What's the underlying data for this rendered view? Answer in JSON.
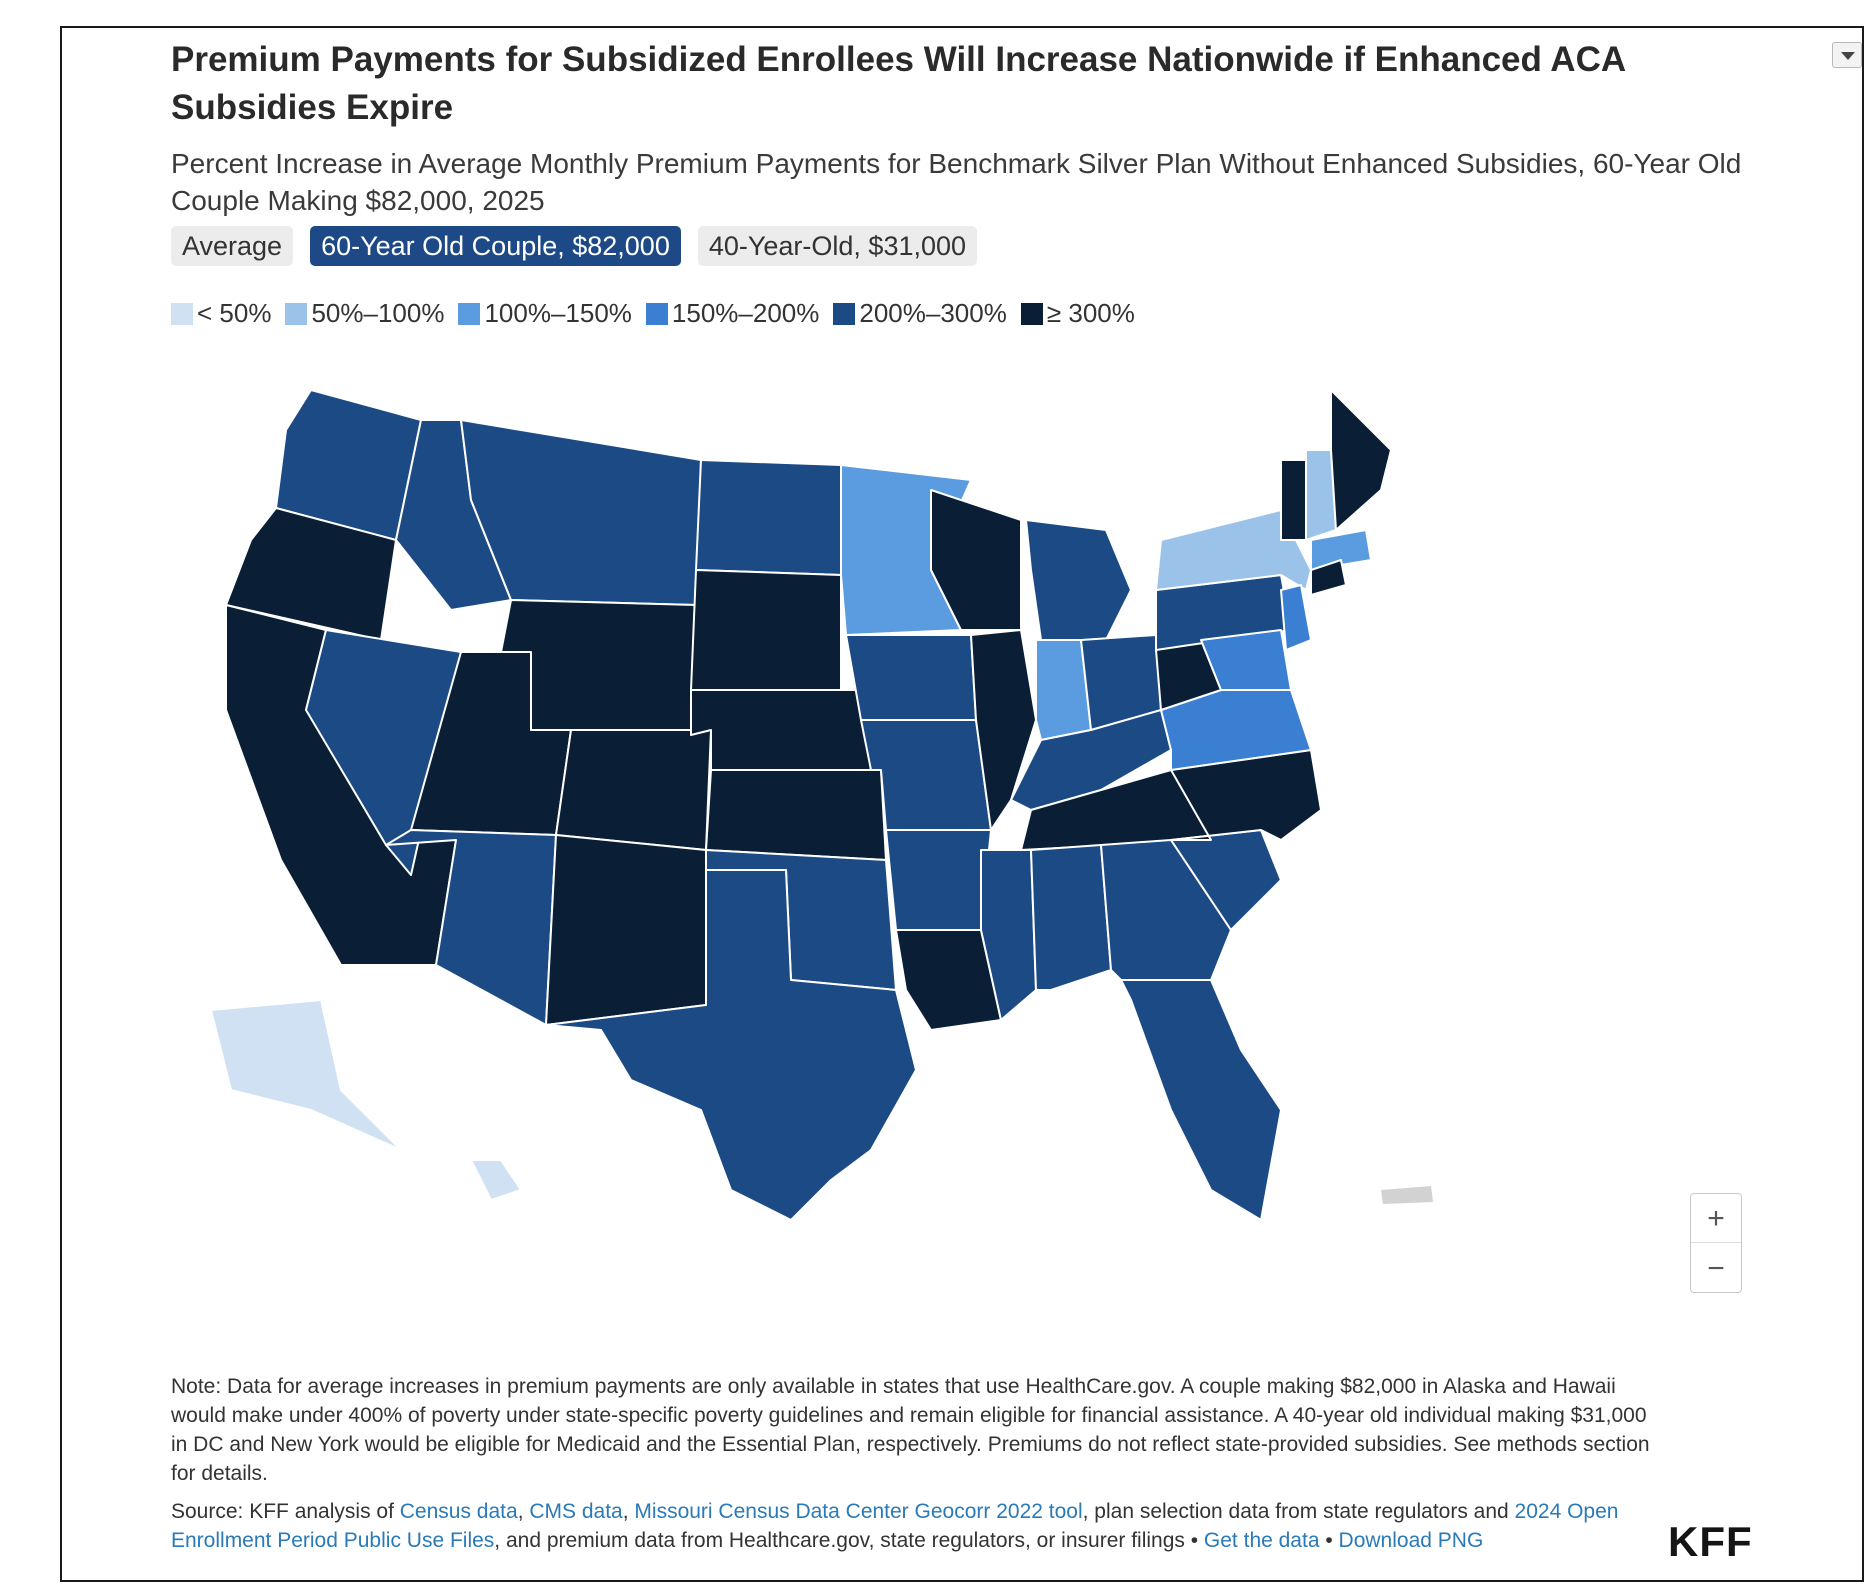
{
  "header": {
    "title": "Premium Payments for Subsidized Enrollees Will Increase Nationwide if Enhanced ACA Subsidies Expire",
    "subtitle": "Percent Increase in Average Monthly Premium Payments for Benchmark Silver Plan Without Enhanced Subsidies, 60-Year Old Couple Making $82,000, 2025",
    "menu_icon": "chevron-down-icon"
  },
  "tabs": [
    {
      "label": "Average",
      "active": false
    },
    {
      "label": "60-Year Old Couple, $82,000",
      "active": true
    },
    {
      "label": "40-Year-Old, $31,000",
      "active": false
    }
  ],
  "legend": [
    {
      "label": "< 50%",
      "color": "#cfe1f3"
    },
    {
      "label": "50%–100%",
      "color": "#9bc3e9"
    },
    {
      "label": "100%–150%",
      "color": "#5b9be0"
    },
    {
      "label": "150%–200%",
      "color": "#3a7fd2"
    },
    {
      "label": "200%–300%",
      "color": "#1b4a84"
    },
    {
      "label": "≥ 300%",
      "color": "#0a1e36"
    }
  ],
  "map": {
    "type": "choropleth",
    "regions": [
      {
        "name": "WA",
        "category": "200%–300%"
      },
      {
        "name": "OR",
        "category": "≥ 300%"
      },
      {
        "name": "CA",
        "category": "≥ 300%"
      },
      {
        "name": "NV",
        "category": "200%–300%"
      },
      {
        "name": "ID",
        "category": "200%–300%"
      },
      {
        "name": "MT",
        "category": "200%–300%"
      },
      {
        "name": "WY",
        "category": "≥ 300%"
      },
      {
        "name": "UT",
        "category": "≥ 300%"
      },
      {
        "name": "AZ",
        "category": "200%–300%"
      },
      {
        "name": "CO",
        "category": "≥ 300%"
      },
      {
        "name": "NM",
        "category": "≥ 300%"
      },
      {
        "name": "ND",
        "category": "200%–300%"
      },
      {
        "name": "SD",
        "category": "≥ 300%"
      },
      {
        "name": "NE",
        "category": "≥ 300%"
      },
      {
        "name": "KS",
        "category": "≥ 300%"
      },
      {
        "name": "OK",
        "category": "200%–300%"
      },
      {
        "name": "TX",
        "category": "200%–300%"
      },
      {
        "name": "MN",
        "category": "100%–150%"
      },
      {
        "name": "IA",
        "category": "200%–300%"
      },
      {
        "name": "MO",
        "category": "200%–300%"
      },
      {
        "name": "AR",
        "category": "200%–300%"
      },
      {
        "name": "LA",
        "category": "≥ 300%"
      },
      {
        "name": "WI",
        "category": "≥ 300%"
      },
      {
        "name": "IL",
        "category": "≥ 300%"
      },
      {
        "name": "MI",
        "category": "200%–300%"
      },
      {
        "name": "IN",
        "category": "100%–150%"
      },
      {
        "name": "OH",
        "category": "200%–300%"
      },
      {
        "name": "KY",
        "category": "200%–300%"
      },
      {
        "name": "TN",
        "category": "≥ 300%"
      },
      {
        "name": "MS",
        "category": "200%–300%"
      },
      {
        "name": "AL",
        "category": "200%–300%"
      },
      {
        "name": "GA",
        "category": "200%–300%"
      },
      {
        "name": "FL",
        "category": "200%–300%"
      },
      {
        "name": "SC",
        "category": "200%–300%"
      },
      {
        "name": "NC",
        "category": "≥ 300%"
      },
      {
        "name": "VA",
        "category": "150%–200%"
      },
      {
        "name": "WV",
        "category": "≥ 300%"
      },
      {
        "name": "PA",
        "category": "200%–300%"
      },
      {
        "name": "NY",
        "category": "50%–100%"
      },
      {
        "name": "VT",
        "category": "≥ 300%"
      },
      {
        "name": "NH",
        "category": "50%–100%"
      },
      {
        "name": "ME",
        "category": "≥ 300%"
      },
      {
        "name": "MA",
        "category": "100%–150%"
      },
      {
        "name": "CT",
        "category": "≥ 300%"
      },
      {
        "name": "NJ",
        "category": "150%–200%"
      },
      {
        "name": "MD",
        "category": "150%–200%"
      },
      {
        "name": "AK",
        "category": "< 50%"
      },
      {
        "name": "HI",
        "category": "< 50%"
      }
    ]
  },
  "zoom": {
    "in_label": "+",
    "out_label": "−"
  },
  "note": "Note: Data for average increases in premium payments are only available in states that use HealthCare.gov. A couple making $82,000 in Alaska and Hawaii would make under 400% of poverty under state-specific poverty guidelines and remain eligible for financial assistance. A 40-year old individual making $31,000 in DC and New York would be eligible for Medicaid and the Essential Plan, respectively. Premiums do not reflect state-provided subsidies. See methods section for details.",
  "source": {
    "prefix": "Source: KFF analysis of ",
    "link_census": "Census data",
    "sep1": ", ",
    "link_cms": "CMS data",
    "sep2": ", ",
    "link_geocorr": "Missouri Census Data Center Geocorr 2022 tool",
    "mid": ", plan selection data from state regulators and ",
    "link_puf": "2024 Open Enrollment Period Public Use Files",
    "suffix": ", and premium data from Healthcare.gov, state regulators, or insurer filings • ",
    "link_data": "Get the data",
    "bullet": " • ",
    "link_png": "Download PNG"
  },
  "logo": "KFF"
}
